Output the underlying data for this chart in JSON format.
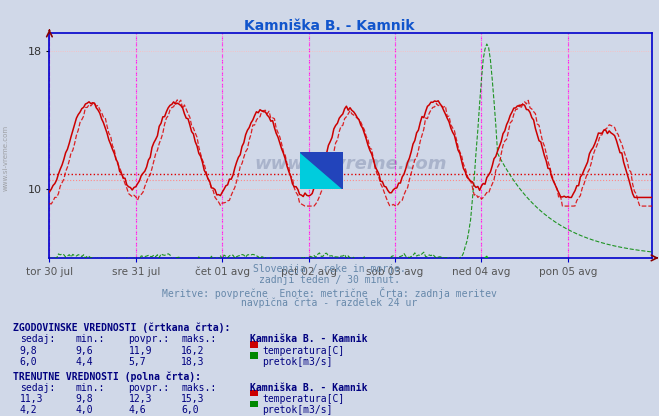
{
  "title": "Kamniška B. - Kamnik",
  "title_color": "#1155cc",
  "bg_color": "#d0d8e8",
  "plot_bg_color": "#d0d8e8",
  "grid_color": "#ffbbbb",
  "axis_color": "#0000cc",
  "x_label_color": "#555555",
  "ylim": [
    6,
    19
  ],
  "yticks": [
    10,
    18
  ],
  "y_label_color": "#333333",
  "vline_color": "#ff00ff",
  "hline_temp_avg_hist": 10.85,
  "hline_temp_avg_curr": 10.5,
  "n_points": 336,
  "x_tick_labels": [
    "tor 30 jul",
    "sre 31 jul",
    "čet 01 avg",
    "pet 02 avg",
    "sob 03 avg",
    "ned 04 avg",
    "pon 05 avg"
  ],
  "x_tick_positions": [
    0,
    48,
    96,
    144,
    192,
    240,
    288
  ],
  "vline_positions": [
    0,
    48,
    96,
    144,
    192,
    240,
    288,
    335
  ],
  "subtitle_lines": [
    "Slovenija / reke in morje.",
    "zadnji teden / 30 minut.",
    "Meritve: povprečne  Enote: metrične  Črta: zadnja meritev",
    "navpična črta - razdelek 24 ur"
  ],
  "subtitle_color": "#6688aa",
  "table_text_color": "#000080",
  "watermark": "www.si-vreme.com",
  "temp_color_hist": "#dd0000",
  "temp_color_curr": "#cc0000",
  "flow_color_hist": "#008800",
  "flow_color_curr": "#00bb00",
  "flow_scale_min": 0.0,
  "flow_scale_max": 21.0,
  "plot_y_min": 6.0,
  "plot_y_max": 19.0,
  "temp_min_hist": 9.6,
  "temp_max_hist": 16.2,
  "temp_avg_hist": 11.9,
  "temp_curr_hist": 9.8,
  "flow_min_hist": 4.4,
  "flow_max_hist": 18.3,
  "flow_avg_hist": 5.7,
  "flow_curr_hist": 6.0,
  "temp_min_curr": 9.8,
  "temp_max_curr": 15.3,
  "temp_avg_curr": 12.3,
  "temp_curr_curr": 11.3,
  "flow_min_curr": 4.0,
  "flow_max_curr": 6.0,
  "flow_avg_curr": 4.6,
  "flow_curr_curr": 4.2
}
